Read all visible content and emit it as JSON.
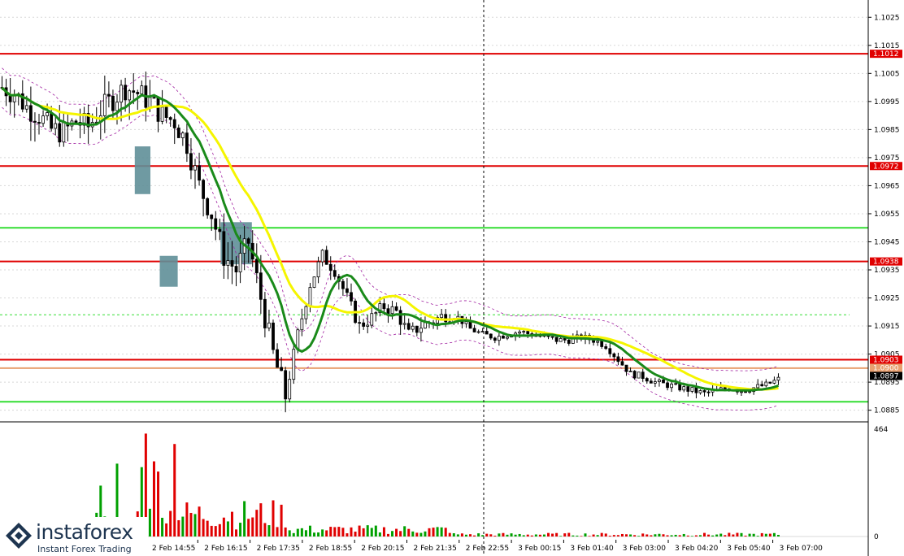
{
  "chart_data": [
    {
      "type": "candlestick",
      "ylim": [
        1.0882,
        1.103
      ],
      "y_ticks": [
        "1.1025",
        "1.1015",
        "1.1005",
        "1.0995",
        "1.0985",
        "1.0975",
        "1.0965",
        "1.0955",
        "1.0945",
        "1.0935",
        "1.0925",
        "1.0915",
        "1.0905",
        "1.0895",
        "1.0885"
      ],
      "x_ticks": [
        "2 Feb 14:55",
        "2 Feb 16:15",
        "2 Feb 17:35",
        "2 Feb 18:55",
        "2 Feb 20:15",
        "2 Feb 21:35",
        "2 Feb 22:55",
        "3 Feb 00:15",
        "3 Feb 01:40",
        "3 Feb 03:00",
        "3 Feb 04:20",
        "3 Feb 05:40",
        "3 Feb 07:00"
      ],
      "price_labels": [
        {
          "label": "1.1012",
          "value": 1.1012,
          "color": "#e00000"
        },
        {
          "label": "1.0972",
          "value": 1.0972,
          "color": "#e00000"
        },
        {
          "label": "1.0938",
          "value": 1.0938,
          "color": "#e00000"
        },
        {
          "label": "1.0903",
          "value": 1.0903,
          "color": "#e00000"
        },
        {
          "label": "1.0900",
          "value": 1.09,
          "color": "#e8a070"
        },
        {
          "label": "1.0897",
          "value": 1.0897,
          "color": "#000000"
        }
      ],
      "horizontal_levels": [
        {
          "value": 1.1012,
          "color": "#e00000",
          "style": "solid"
        },
        {
          "value": 1.0972,
          "color": "#e00000",
          "style": "solid"
        },
        {
          "value": 1.0938,
          "color": "#e00000",
          "style": "solid"
        },
        {
          "value": 1.0903,
          "color": "#e00000",
          "style": "solid"
        },
        {
          "value": 1.09,
          "color": "#e8a070",
          "style": "solid"
        },
        {
          "value": 1.095,
          "color": "#33dd33",
          "style": "solid"
        },
        {
          "value": 1.0888,
          "color": "#33dd33",
          "style": "solid"
        },
        {
          "value": 1.0919,
          "color": "#33dd33",
          "style": "dashed"
        }
      ],
      "highlight_boxes": [
        {
          "x": [
            0.155,
            0.175
          ],
          "y": [
            1.0962,
            1.0979
          ]
        },
        {
          "x": [
            0.187,
            0.21
          ],
          "y": [
            1.0929,
            1.094
          ]
        },
        {
          "x": [
            0.265,
            0.305
          ],
          "y": [
            1.0937,
            1.0952
          ]
        }
      ],
      "close_series": [
        1.1,
        1.0998,
        1.0993,
        1.099,
        1.0985,
        1.0984,
        1.0988,
        1.0986,
        1.0992,
        1.0996,
        1.1,
        1.0998,
        1.0995,
        1.099,
        1.0988,
        1.098,
        1.0965,
        1.0955,
        1.094,
        1.0935,
        1.0945,
        1.0925,
        1.0905,
        1.089,
        1.0912,
        1.093,
        1.094,
        1.0935,
        1.0925,
        1.0915,
        1.0918,
        1.0922,
        1.092,
        1.0912,
        1.0915,
        1.0917,
        1.0919,
        1.0918,
        1.0914,
        1.0912,
        1.0911,
        1.0912,
        1.0913,
        1.0912,
        1.0911,
        1.091,
        1.091,
        1.0911,
        1.091,
        1.0908,
        1.0903,
        1.0898,
        1.0897,
        1.0895,
        1.0894,
        1.0893,
        1.0892,
        1.0891,
        1.0892,
        1.0893,
        1.0892,
        1.0893,
        1.0894,
        1.0896
      ],
      "series": [
        {
          "name": "",
          "color": "#f5f500",
          "style": "line"
        },
        {
          "name": "",
          "color": "#1a8a1a",
          "style": "line"
        },
        {
          "name": "",
          "color": "#a020a0",
          "style": "dashed"
        }
      ]
    },
    {
      "type": "bar",
      "ylim": [
        0,
        464
      ],
      "y_ticks": [
        "464",
        "0"
      ],
      "up_color": "#00a000",
      "down_color": "#e00000"
    }
  ],
  "brand": {
    "name": "instaforex",
    "tagline": "Instant Forex Trading"
  }
}
